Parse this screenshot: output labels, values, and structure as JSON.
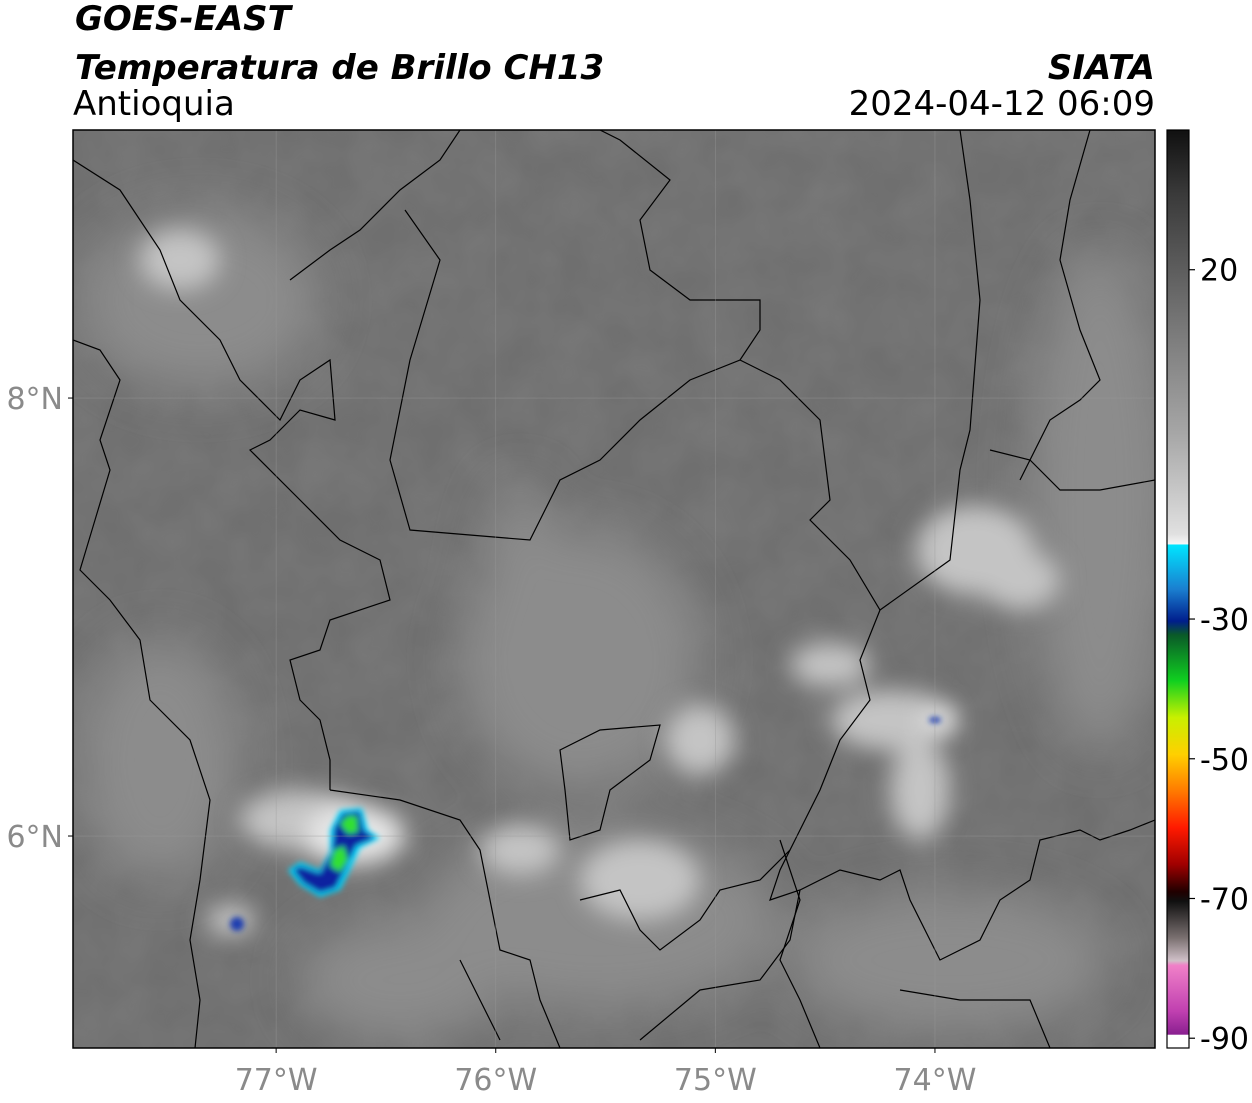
{
  "header": {
    "title": "GOES-EAST",
    "subtitle": "Temperatura de Brillo CH13",
    "region": "Antioquia",
    "source": "SIATA",
    "datetime": "2024-04-12 06:09"
  },
  "map": {
    "lonlim": [
      -77.925,
      -72.998
    ],
    "latlim": [
      5.032,
      9.224
    ],
    "lon_ticks": [
      {
        "value": -77,
        "label": "77°W"
      },
      {
        "value": -76,
        "label": "76°W"
      },
      {
        "value": -75,
        "label": "75°W"
      },
      {
        "value": -74,
        "label": "74°W"
      }
    ],
    "lat_ticks": [
      {
        "value": 8,
        "label": "8°N"
      },
      {
        "value": 6,
        "label": "6°N"
      }
    ],
    "grid": true
  },
  "colorbar": {
    "lim": [
      -91.4,
      40
    ],
    "ticks": [
      20,
      -30,
      -50,
      -70,
      -90
    ]
  }
}
